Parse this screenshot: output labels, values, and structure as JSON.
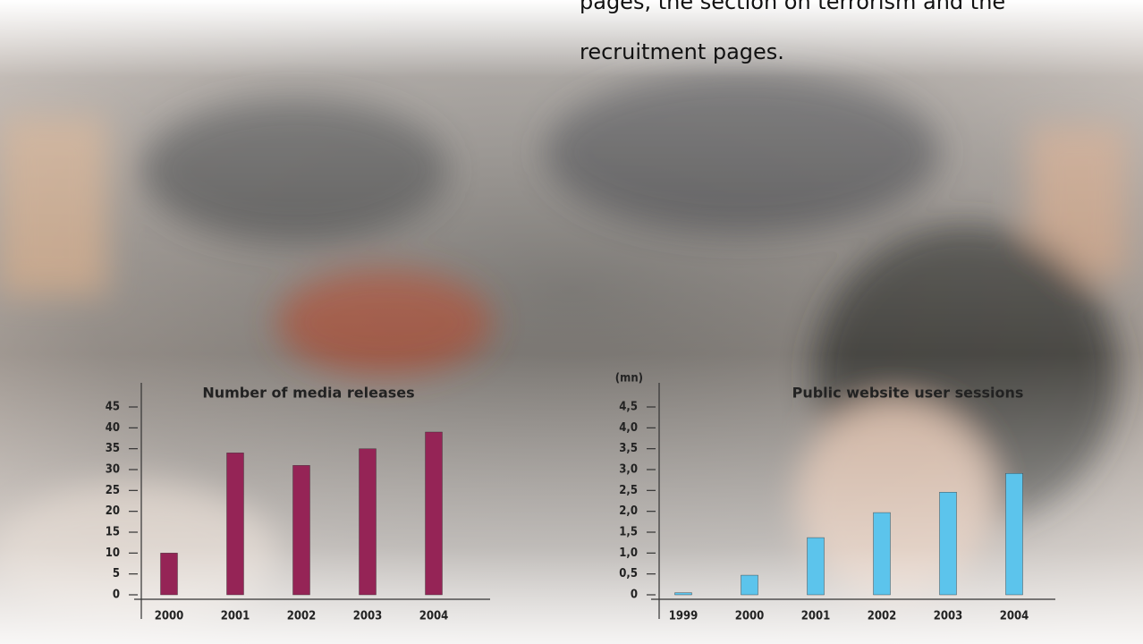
{
  "page_text": [
    "pages, the section on terrorism and the",
    "recruitment pages."
  ],
  "chart_data": [
    {
      "type": "bar",
      "title": "Number of media releases",
      "categories": [
        "2000",
        "2001",
        "2002",
        "2003",
        "2004"
      ],
      "values": [
        10,
        34,
        31,
        35,
        39
      ],
      "color": "#952456",
      "ylim": [
        0,
        45
      ],
      "yticks": [
        0,
        5,
        10,
        15,
        20,
        25,
        30,
        35,
        40,
        45
      ]
    },
    {
      "type": "bar",
      "title": "Public website user sessions",
      "y_label": "(mn)",
      "categories": [
        "1999",
        "2000",
        "2001",
        "2002",
        "2003",
        "2004"
      ],
      "values": [
        0.05,
        0.47,
        1.37,
        1.97,
        2.46,
        2.91
      ],
      "color": "#5cc4ec",
      "ylim": [
        0,
        4.5
      ],
      "yticks": [
        0,
        {
          "value": 0.5,
          "label": "0,5"
        },
        {
          "value": 1,
          "label": "1,0"
        },
        {
          "value": 1.5,
          "label": "1,5"
        },
        {
          "value": 2,
          "label": "2,0"
        },
        {
          "value": 2.5,
          "label": "2,5"
        },
        {
          "value": 3,
          "label": "3,0"
        },
        {
          "value": 3.5,
          "label": "3,5"
        },
        {
          "value": 4,
          "label": "4,0"
        },
        {
          "value": 4.5,
          "label": "4,5"
        }
      ]
    }
  ]
}
